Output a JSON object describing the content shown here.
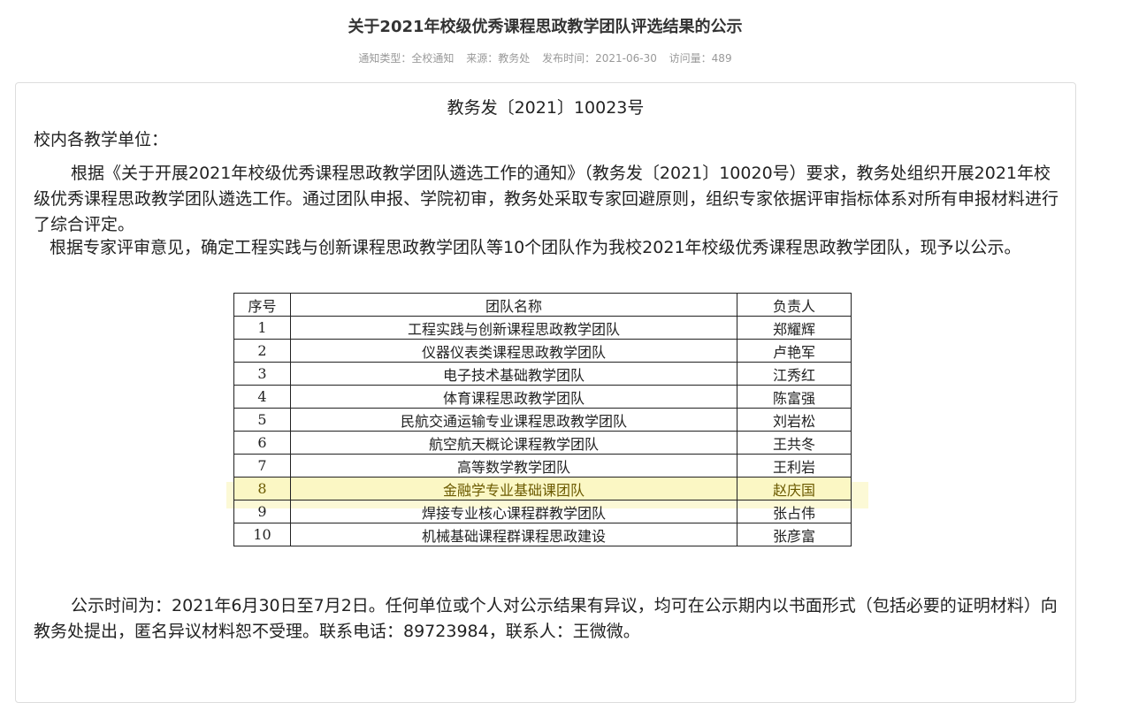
{
  "title": "关于2021年校级优秀课程思政教学团队评选结果的公示",
  "meta": {
    "type": "通知类型：全校通知",
    "source": "来源：教务处",
    "date": "发布时间：2021-06-30",
    "views": "访问量：489"
  },
  "doc_number": "教务发〔2021〕10023号",
  "salutation": "校内各教学单位：",
  "para1": "根据《关于开展2021年校级优秀课程思政教学团队遴选工作的通知》（教务发〔2021〕10020号）要求，教务处组织开展2021年校级优秀课程思政教学团队遴选工作。通过团队申报、学院初审，教务处采取专家回避原则，组织专家依据评审指标体系对所有申报材料进行了综合评定。",
  "para2": "根据专家评审意见，确定工程实践与创新课程思政教学团队等10个团队作为我校2021年校级优秀课程思政教学团队，现予以公示。",
  "table": {
    "headers": [
      "序号",
      "团队名称",
      "负责人"
    ],
    "rows": [
      [
        "1",
        "工程实践与创新课程思政教学团队",
        "郑耀辉"
      ],
      [
        "2",
        "仪器仪表类课程思政教学团队",
        "卢艳军"
      ],
      [
        "3",
        "电子技术基础教学团队",
        "江秀红"
      ],
      [
        "4",
        "体育课程思政教学团队",
        "陈富强"
      ],
      [
        "5",
        "民航交通运输专业课程思政教学团队",
        "刘岩松"
      ],
      [
        "6",
        "航空航天概论课程教学团队",
        "王共冬"
      ],
      [
        "7",
        "高等数学教学团队",
        "王利岩"
      ],
      [
        "8",
        "金融学专业基础课团队",
        "赵庆国"
      ],
      [
        "9",
        "焊接专业核心课程群教学团队",
        "张占伟"
      ],
      [
        "10",
        "机械基础课程群课程思政建设",
        "张彦富"
      ]
    ],
    "highlight_color": "#fbf7c4"
  },
  "para3": "公示时间为：2021年6月30日至7月2日。任何单位或个人对公示结果有异议，均可在公示期内以书面形式（包括必要的证明材料）向教务处提出，匿名异议材料恕不受理。联系电话：89723984，联系人：王微微。"
}
